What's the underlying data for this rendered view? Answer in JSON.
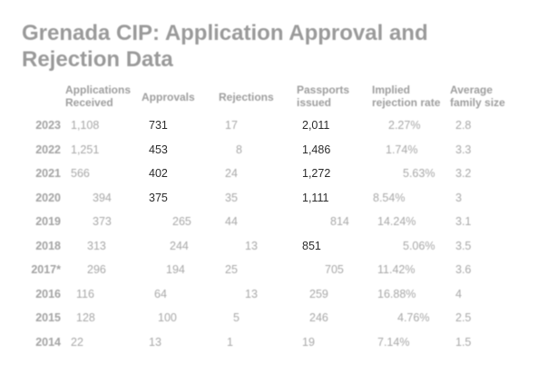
{
  "title": "Grenada CIP: Application Approval and Rejection Data",
  "headers": {
    "applications": "Applications Received",
    "approvals": "Approvals",
    "rejections": "Rejections",
    "passports": "Passports issued",
    "rejection_rate": "Implied rejection rate",
    "family_size": "Average family size"
  },
  "rows": [
    {
      "year": "2023",
      "applications": "1,108",
      "approvals": "731",
      "rejections": "17",
      "passports": "2,011",
      "rate": "2.27%",
      "family": "2.8"
    },
    {
      "year": "2022",
      "applications": "1,251",
      "approvals": "453",
      "rejections": "8",
      "passports": "1,486",
      "rate": "1.74%",
      "family": "3.3"
    },
    {
      "year": "2021",
      "applications": "566",
      "approvals": "402",
      "rejections": "24",
      "passports": "1,272",
      "rate": "5.63%",
      "family": "3.2"
    },
    {
      "year": "2020",
      "applications": "394",
      "approvals": "375",
      "rejections": "35",
      "passports": "1,111",
      "rate": "8.54%",
      "family": "3"
    },
    {
      "year": "2019",
      "applications": "373",
      "approvals": "265",
      "rejections": "44",
      "passports": "814",
      "rate": "14.24%",
      "family": "3.1"
    },
    {
      "year": "2018",
      "applications": "313",
      "approvals": "244",
      "rejections": "13",
      "passports": "851",
      "rate": "5.06%",
      "family": "3.5"
    },
    {
      "year": "2017*",
      "applications": "296",
      "approvals": "194",
      "rejections": "25",
      "passports": "705",
      "rate": "11.42%",
      "family": "3.6"
    },
    {
      "year": "2016",
      "applications": "116",
      "approvals": "64",
      "rejections": "13",
      "passports": "259",
      "rate": "16.88%",
      "family": "4"
    },
    {
      "year": "2015",
      "applications": "128",
      "approvals": "100",
      "rejections": "5",
      "passports": "246",
      "rate": "4.76%",
      "family": "2.5"
    },
    {
      "year": "2014",
      "applications": "22",
      "approvals": "13",
      "rejections": "1",
      "passports": "19",
      "rate": "7.14%",
      "family": "1.5"
    }
  ]
}
